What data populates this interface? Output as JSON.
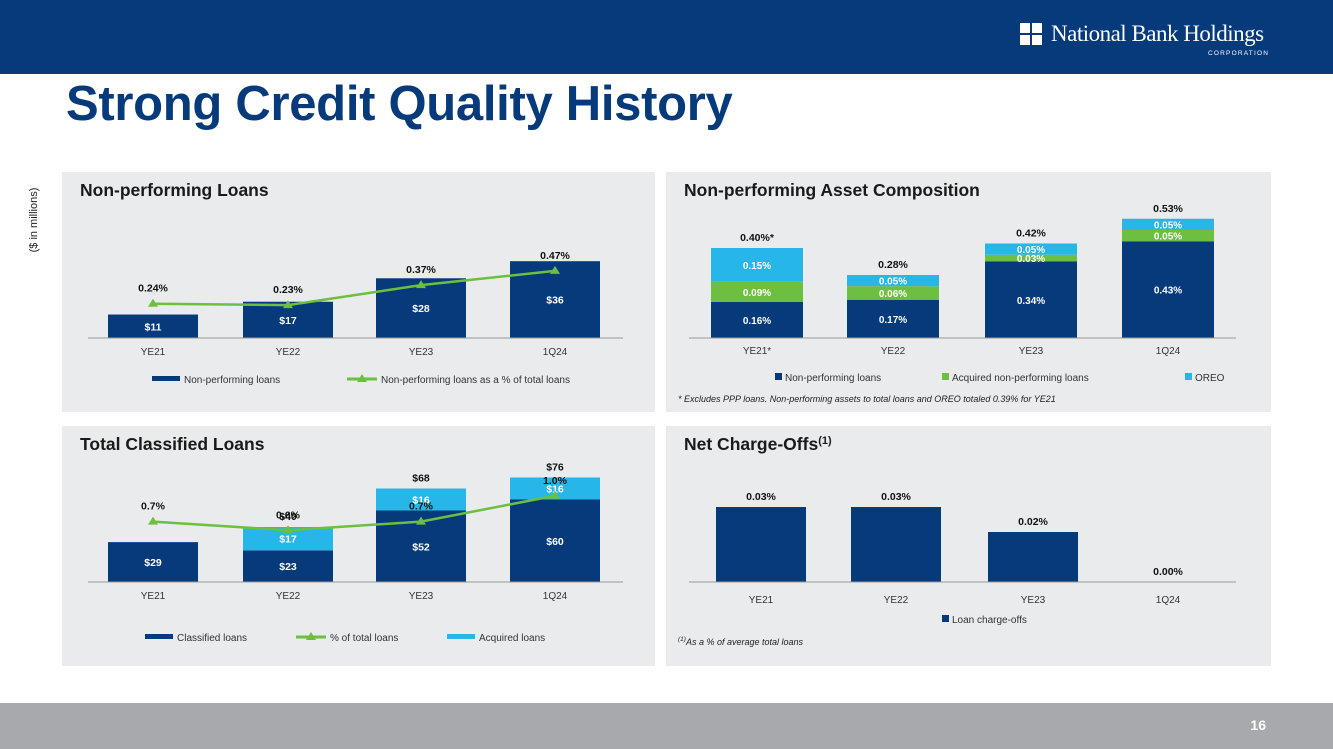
{
  "header": {
    "company_name": "National Bank Holdings",
    "company_sub": "CORPORATION",
    "page_title": "Strong Credit Quality History",
    "y_unit": "($ in millions)"
  },
  "footer": {
    "page_number": "16"
  },
  "colors": {
    "navy": "#063A7A",
    "green": "#6CBF3F",
    "cyan": "#26B6E8",
    "panel": "#EAEBEC",
    "grey": "#A7A9AC"
  },
  "panels": {
    "npl": {
      "title": "Non-performing Loans"
    },
    "npa": {
      "title": "Non-performing Asset Composition",
      "footnote": "* Excludes PPP loans. Non-performing assets to total loans and OREO totaled 0.39% for YE21"
    },
    "tcl": {
      "title": "Total Classified Loans"
    },
    "nco": {
      "title": "Net Charge-Offs",
      "title_sup": "(1)",
      "footnote_sup": "(1)",
      "footnote": "As a % of average total loans"
    }
  },
  "chart_data": [
    {
      "id": "npl",
      "type": "bar",
      "title": "Non-performing Loans",
      "categories": [
        "YE21",
        "YE22",
        "YE23",
        "1Q24"
      ],
      "ylim": [
        0,
        60
      ],
      "series": [
        {
          "name": "Non-performing loans",
          "kind": "bar",
          "color": "#063A7A",
          "values": [
            11,
            17,
            28,
            36
          ],
          "labels": [
            "$11",
            "$17",
            "$28",
            "$36"
          ]
        },
        {
          "name": "Non-performing loans as a % of total loans",
          "kind": "line",
          "color": "#6CBF3F",
          "values": [
            0.24,
            0.23,
            0.37,
            0.47
          ],
          "labels": [
            "0.24%",
            "0.23%",
            "0.37%",
            "0.47%"
          ],
          "ylim": [
            0,
            0.7
          ]
        }
      ],
      "legend": "bottom"
    },
    {
      "id": "npa",
      "type": "bar",
      "stacked": true,
      "title": "Non-performing Asset Composition",
      "categories": [
        "YE21*",
        "YE22",
        "YE23",
        "1Q24"
      ],
      "ylim": [
        0,
        0.6
      ],
      "series": [
        {
          "name": "Non-performing loans",
          "color": "#063A7A",
          "values": [
            0.16,
            0.17,
            0.34,
            0.43
          ],
          "labels": [
            "0.16%",
            "0.17%",
            "0.34%",
            "0.43%"
          ]
        },
        {
          "name": "Acquired non-performing loans",
          "color": "#6CBF3F",
          "values": [
            0.09,
            0.06,
            0.03,
            0.05
          ],
          "labels": [
            "0.09%",
            "0.06%",
            "0.03%",
            "0.05%"
          ]
        },
        {
          "name": "OREO",
          "color": "#26B6E8",
          "values": [
            0.15,
            0.05,
            0.05,
            0.05
          ],
          "labels": [
            "0.15%",
            "0.05%",
            "0.05%",
            "0.05%"
          ]
        }
      ],
      "totals": [
        "0.40%*",
        "0.28%",
        "0.42%",
        "0.53%"
      ],
      "legend": "bottom"
    },
    {
      "id": "tcl",
      "type": "bar",
      "stacked": true,
      "title": "Total Classified Loans",
      "categories": [
        "YE21",
        "YE22",
        "YE23",
        "1Q24"
      ],
      "ylim": [
        0,
        120
      ],
      "series": [
        {
          "name": "Classified loans",
          "kind": "bar",
          "color": "#063A7A",
          "values": [
            29,
            23,
            52,
            60
          ],
          "labels": [
            "$29",
            "$23",
            "$52",
            "$60"
          ]
        },
        {
          "name": "% of total loans",
          "kind": "line",
          "color": "#6CBF3F",
          "values": [
            0.7,
            0.6,
            0.7,
            1.0
          ],
          "labels": [
            "0.7%",
            "0.6%",
            "0.7%",
            "1.0%"
          ],
          "ylim": [
            0,
            1.6
          ]
        },
        {
          "name": "Acquired loans",
          "kind": "bar",
          "color": "#26B6E8",
          "values": [
            0,
            17,
            16,
            16
          ],
          "labels": [
            "",
            "$17",
            "$16",
            "$16"
          ]
        }
      ],
      "totals": [
        "",
        "$40",
        "$68",
        "$76"
      ],
      "legend": "bottom"
    },
    {
      "id": "nco",
      "type": "bar",
      "title": "Net Charge-Offs",
      "categories": [
        "YE21",
        "YE22",
        "YE23",
        "1Q24"
      ],
      "ylim": [
        0,
        0.08
      ],
      "series": [
        {
          "name": "Loan charge-offs",
          "color": "#063A7A",
          "values": [
            0.03,
            0.03,
            0.02,
            0.0
          ],
          "labels": [
            "0.03%",
            "0.03%",
            "0.02%",
            "0.00%"
          ]
        }
      ],
      "legend": "bottom"
    }
  ]
}
